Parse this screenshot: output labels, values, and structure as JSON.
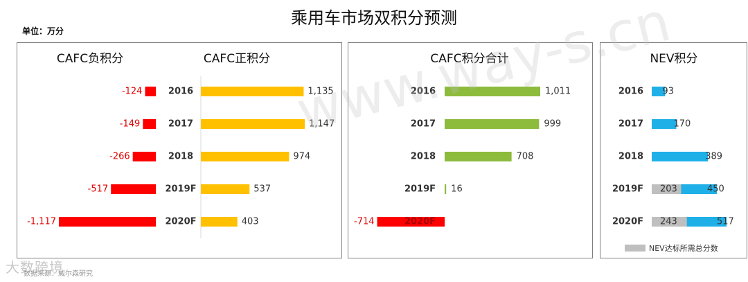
{
  "title": "乘用车市场双积分预测",
  "unit": "单位：万分",
  "source": "数据来源：威尔森研究",
  "watermark": {
    "logo": "大数跨境",
    "site": "www.way-s.cn"
  },
  "colors": {
    "red": "#ff0000",
    "yellow": "#ffc000",
    "green": "#8dbb3c",
    "blue": "#1fb0e8",
    "gray": "#bfbfbf",
    "negText": "#e00000"
  },
  "chart_data": [
    {
      "type": "bar",
      "orientation": "horizontal",
      "title": "CAFC负积分",
      "categories": [
        "2016",
        "2017",
        "2018",
        "2019F",
        "2020F"
      ],
      "values": [
        -124,
        -149,
        -266,
        -517,
        -1117
      ],
      "labels": [
        "-124",
        "-149",
        "-266",
        "-517",
        "-1,117"
      ],
      "xlim": [
        -1117,
        0
      ]
    },
    {
      "type": "bar",
      "orientation": "horizontal",
      "title": "CAFC正积分",
      "categories": [
        "2016",
        "2017",
        "2018",
        "2019F",
        "2020F"
      ],
      "values": [
        1135,
        1147,
        974,
        537,
        403
      ],
      "labels": [
        "1,135",
        "1,147",
        "974",
        "537",
        "403"
      ],
      "xlim": [
        0,
        1147
      ]
    },
    {
      "type": "bar",
      "orientation": "horizontal",
      "title": "CAFC积分合计",
      "categories": [
        "2016",
        "2017",
        "2018",
        "2019F",
        "2020F"
      ],
      "values": [
        1011,
        999,
        708,
        16,
        -714
      ],
      "labels": [
        "1,011",
        "999",
        "708",
        "16",
        "-714"
      ],
      "xlim": [
        -714,
        1011
      ]
    },
    {
      "type": "bar",
      "orientation": "horizontal",
      "stacked": true,
      "title": "NEV积分",
      "categories": [
        "2016",
        "2017",
        "2018",
        "2019F",
        "2020F"
      ],
      "series": [
        {
          "name": "NEV达标所需总分数",
          "values": [
            0,
            0,
            0,
            203,
            243
          ],
          "labels": [
            "",
            "",
            "",
            "203",
            "243"
          ]
        },
        {
          "name": "",
          "values": [
            93,
            170,
            389,
            450,
            517
          ],
          "labels": [
            "93",
            "170",
            "389",
            "450",
            "517"
          ]
        }
      ],
      "legend": "bottom-right"
    }
  ]
}
